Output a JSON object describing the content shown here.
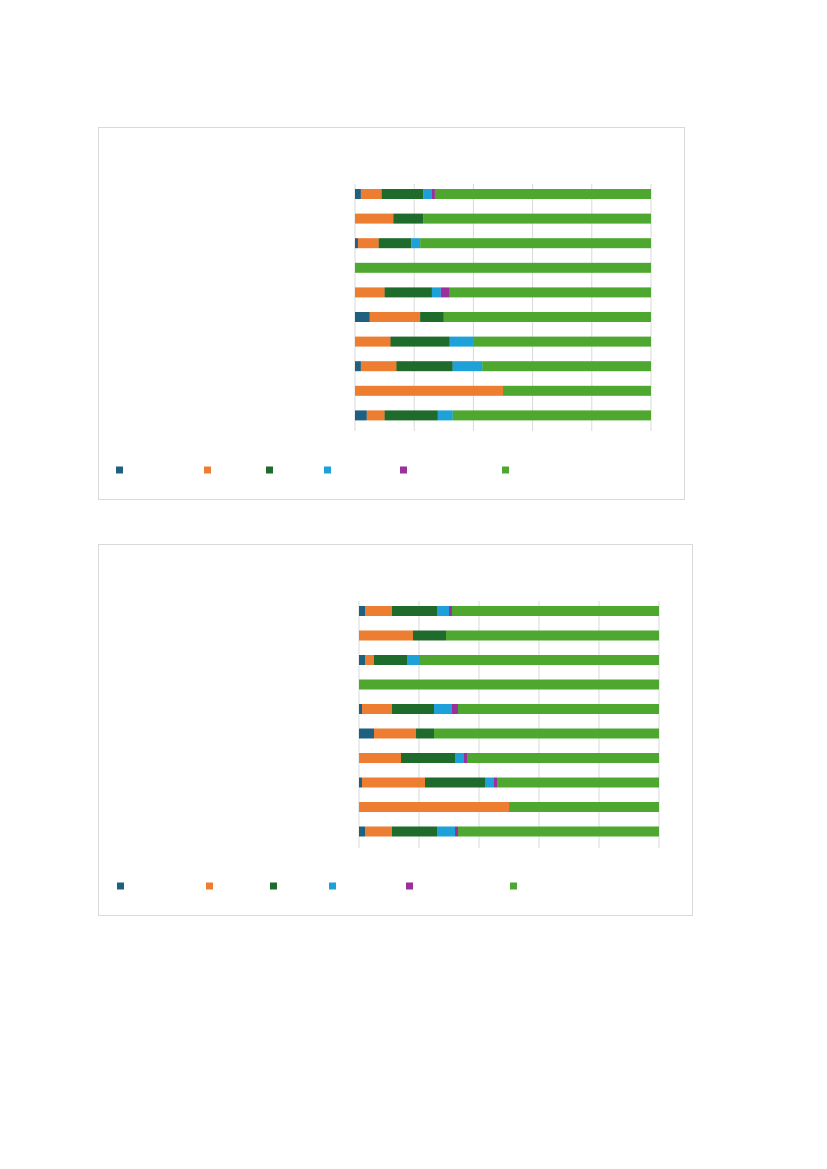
{
  "colors": {
    "series": [
      "#1f5f7f",
      "#ed7d31",
      "#1e6b2c",
      "#1ea1d9",
      "#9b2f9b",
      "#4ea72e"
    ],
    "grid": "#d9d9d9",
    "frame": "#d9d9d9"
  },
  "chart_data": [
    {
      "type": "bar",
      "orientation": "horizontal",
      "stacked": "percent",
      "grid": true,
      "legend_position": "bottom",
      "xlim": [
        0,
        100
      ],
      "series": [
        {
          "values": [
            2,
            0,
            1,
            0,
            0,
            5,
            0,
            2,
            0,
            4
          ]
        },
        {
          "values": [
            7,
            13,
            7,
            0,
            10,
            17,
            12,
            12,
            50,
            6
          ]
        },
        {
          "values": [
            14,
            10,
            11,
            0,
            16,
            8,
            20,
            19,
            0,
            18
          ]
        },
        {
          "values": [
            3,
            0,
            3,
            0,
            3,
            0,
            8,
            10,
            0,
            5
          ]
        },
        {
          "values": [
            1,
            0,
            0,
            0,
            3,
            0,
            0,
            0,
            0,
            0
          ]
        },
        {
          "values": [
            73,
            77,
            78,
            100,
            68,
            70,
            60,
            57,
            50,
            67
          ]
        }
      ]
    },
    {
      "type": "bar",
      "orientation": "horizontal",
      "stacked": "percent",
      "grid": true,
      "legend_position": "bottom",
      "xlim": [
        0,
        100
      ],
      "series": [
        {
          "values": [
            2,
            0,
            2,
            0,
            1,
            5,
            0,
            1,
            0,
            2
          ]
        },
        {
          "values": [
            9,
            18,
            3,
            0,
            10,
            14,
            14,
            21,
            50,
            9
          ]
        },
        {
          "values": [
            15,
            11,
            11,
            0,
            14,
            6,
            18,
            20,
            0,
            15
          ]
        },
        {
          "values": [
            4,
            0,
            4,
            0,
            6,
            0,
            3,
            3,
            0,
            6
          ]
        },
        {
          "values": [
            1,
            0,
            0,
            0,
            2,
            0,
            1,
            1,
            0,
            1
          ]
        },
        {
          "values": [
            69,
            71,
            80,
            100,
            67,
            75,
            64,
            54,
            50,
            67
          ]
        }
      ]
    }
  ]
}
